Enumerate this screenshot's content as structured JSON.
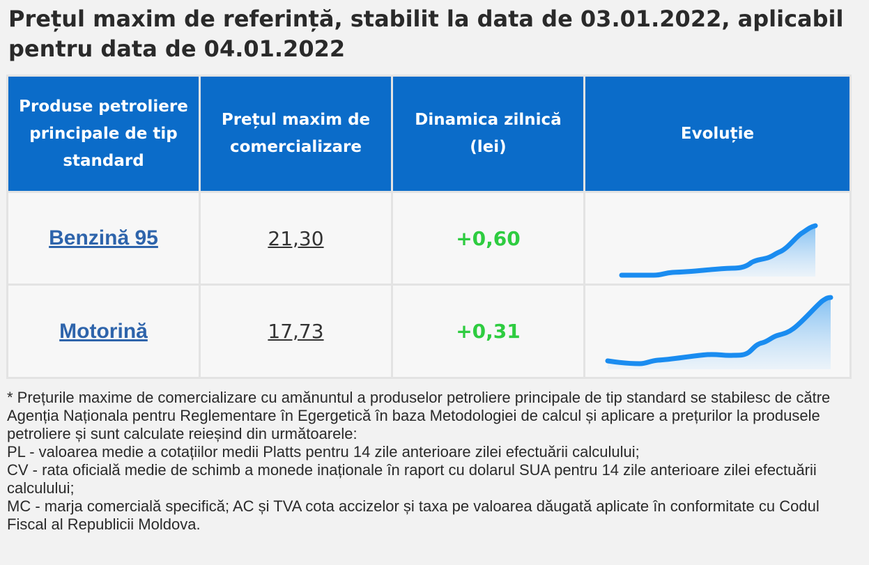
{
  "title": "Prețul maxim de referință, stabilit la data de 03.01.2022, aplicabil pentru data de 04.01.2022",
  "table": {
    "headers": [
      "Produse petroliere principale de tip standard",
      "Prețul maxim de comercializare",
      "Dinamica zilnică (lei)",
      "Evoluție"
    ],
    "rows": [
      {
        "product": "Benzină 95",
        "price": "21,30",
        "change": "+0,60"
      },
      {
        "product": "Motorină",
        "price": "17,73",
        "change": "+0,31"
      }
    ]
  },
  "colors": {
    "header_bg": "#0b6cc9",
    "link": "#2e64ab",
    "positive": "#2ecc40",
    "spark_line": "#1a8cf0"
  },
  "footnote": [
    "* Prețurile maxime de comercializare cu amănuntul a produselor petroliere principale de tip standard se stabilesc de către Agenția Naționala pentru Reglementare în Egergetică în baza Metodologiei de calcul și aplicare a prețurilor la produsele petroliere și sunt calculate reieșind din următoarele:",
    "PL - valoarea medie a cotațiilor medii Platts pentru 14 zile anterioare zilei efectuării calculului;",
    "CV - rata oficială medie de schimb a monede inaționale în raport cu dolarul SUA pentru 14 zile anterioare zilei efectuării calculului;",
    "MC - marja comercială specifică; AC și TVA cota accizelor și taxa pe valoarea dăugată aplicate în conformitate cu Codul Fiscal al Republicii Moldova."
  ]
}
